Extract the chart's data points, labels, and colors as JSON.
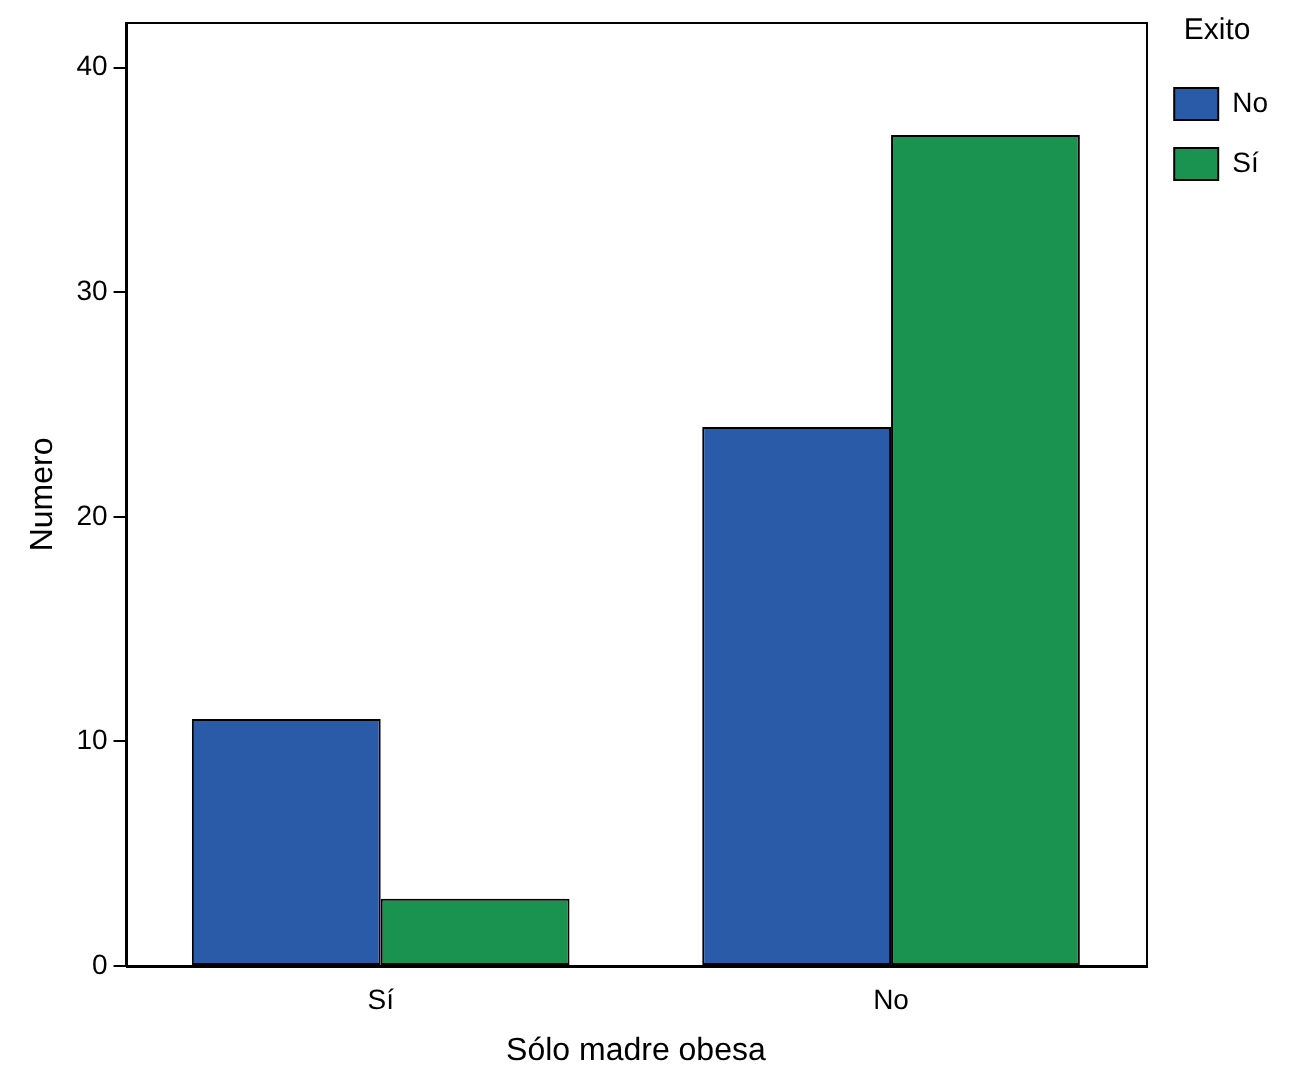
{
  "chart_data": {
    "type": "bar",
    "xlabel": "Sólo madre obesa",
    "ylabel": "Numero",
    "legend_title": "Exito",
    "categories": [
      "Sí",
      "No"
    ],
    "series": [
      {
        "name": "No",
        "color": "#2a5ba8",
        "values": [
          11,
          24
        ]
      },
      {
        "name": "Sí",
        "color": "#1b9350",
        "values": [
          3,
          37
        ]
      }
    ],
    "ylim": [
      0,
      42
    ],
    "yticks": [
      0,
      10,
      20,
      30,
      40
    ],
    "grid": false,
    "legend": "top right"
  }
}
